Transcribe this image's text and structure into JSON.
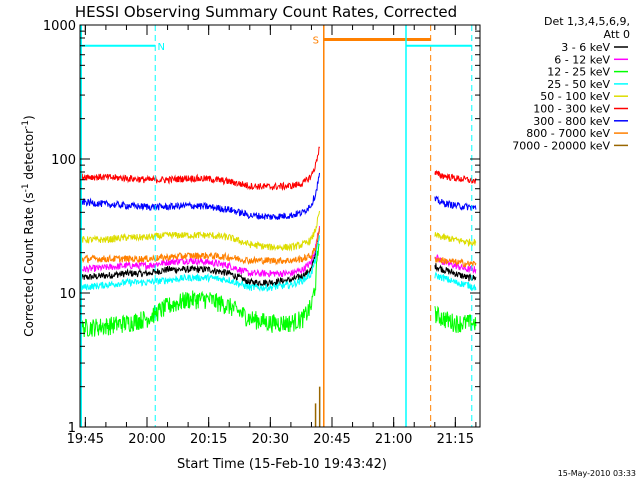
{
  "chart_data": {
    "type": "line",
    "title": "HESSI Observing Summary Count Rates, Corrected",
    "xlabel": "Start Time (15-Feb-10 19:43:42)",
    "ylabel": "Corrected Count Rate (s^-1 detector^-1)",
    "ylabel_parts": {
      "main": "Corrected Count Rate (s",
      "sup1": "-1",
      "mid": " detector",
      "sup2": "-1",
      "end": ")"
    },
    "yscale": "log",
    "ylim": [
      1,
      1000
    ],
    "xlim": [
      "19:43:42",
      "21:21:00"
    ],
    "x_ticks": [
      "19:45",
      "20:00",
      "20:15",
      "20:30",
      "20:45",
      "21:00",
      "21:15"
    ],
    "y_ticks": [
      "1",
      "10",
      "100",
      "1000"
    ],
    "legend_header": [
      "Det 1,3,4,5,6,9,",
      "Att 0"
    ],
    "legend_placement": "right",
    "footer": "15-May-2010 03:33",
    "data_gaps": [
      [
        "20:45:00",
        "21:10:00"
      ]
    ],
    "series": [
      {
        "name": "3 - 6 keV",
        "color": "#000000",
        "x": [
          "19:44",
          "19:50",
          "19:55",
          "20:00",
          "20:05",
          "20:10",
          "20:15",
          "20:20",
          "20:25",
          "20:30",
          "20:35",
          "20:38",
          "20:40",
          "20:41",
          "20:42",
          "21:10",
          "21:12",
          "21:15",
          "21:18",
          "21:20"
        ],
        "values": [
          13,
          13.5,
          14,
          14,
          15,
          15,
          15,
          14,
          12,
          12,
          12.5,
          13.5,
          15,
          20,
          30,
          16,
          15,
          14,
          13,
          13
        ]
      },
      {
        "name": "6 - 12 keV",
        "color": "#ff00ff",
        "x": [
          "19:44",
          "19:50",
          "19:55",
          "20:00",
          "20:05",
          "20:10",
          "20:15",
          "20:20",
          "20:25",
          "20:30",
          "20:35",
          "20:38",
          "20:40",
          "20:41",
          "20:42",
          "21:10",
          "21:12",
          "21:15",
          "21:18",
          "21:20"
        ],
        "values": [
          15,
          15.5,
          16,
          16,
          17,
          17.5,
          17,
          16,
          14,
          14,
          14,
          15,
          17,
          22,
          32,
          19,
          17,
          16,
          15,
          15
        ]
      },
      {
        "name": "12 - 25 keV",
        "color": "#00ff00",
        "x": [
          "19:44",
          "19:50",
          "19:55",
          "20:00",
          "20:05",
          "20:10",
          "20:15",
          "20:20",
          "20:25",
          "20:30",
          "20:35",
          "20:38",
          "20:40",
          "20:41",
          "20:42",
          "21:10",
          "21:12",
          "21:15",
          "21:18",
          "21:20"
        ],
        "values": [
          5.5,
          5.7,
          6,
          6.5,
          8,
          9,
          9,
          8,
          6.5,
          6,
          6,
          6.5,
          8,
          12,
          28,
          7,
          6.5,
          6,
          6,
          6
        ]
      },
      {
        "name": "25 - 50 keV",
        "color": "#00ffff",
        "x": [
          "19:44",
          "19:50",
          "19:55",
          "20:00",
          "20:05",
          "20:10",
          "20:15",
          "20:20",
          "20:25",
          "20:30",
          "20:35",
          "20:38",
          "20:40",
          "20:41",
          "20:42",
          "21:10",
          "21:12",
          "21:15",
          "21:18",
          "21:20"
        ],
        "values": [
          11,
          11.5,
          12,
          12,
          12.5,
          13,
          13,
          12.5,
          11,
          11,
          11.5,
          12.5,
          14,
          18,
          27,
          13.5,
          13,
          12,
          11.5,
          11
        ]
      },
      {
        "name": "50 - 100 keV",
        "color": "#dddd00",
        "x": [
          "19:44",
          "19:50",
          "19:55",
          "20:00",
          "20:05",
          "20:10",
          "20:15",
          "20:20",
          "20:25",
          "20:30",
          "20:35",
          "20:38",
          "20:40",
          "20:41",
          "20:42",
          "21:10",
          "21:12",
          "21:15",
          "21:18",
          "21:20"
        ],
        "values": [
          25,
          25,
          26,
          26,
          27,
          27,
          27,
          26,
          23,
          22,
          22,
          23,
          25,
          30,
          40,
          27,
          26,
          25,
          24,
          24
        ]
      },
      {
        "name": "100 - 300 keV",
        "color": "#ff0000",
        "x": [
          "19:44",
          "19:50",
          "19:55",
          "20:00",
          "20:05",
          "20:10",
          "20:15",
          "20:20",
          "20:25",
          "20:30",
          "20:35",
          "20:38",
          "20:40",
          "20:41",
          "20:42",
          "21:10",
          "21:12",
          "21:15",
          "21:18",
          "21:20"
        ],
        "values": [
          74,
          73,
          72,
          70,
          70,
          72,
          71,
          68,
          63,
          62,
          63,
          66,
          75,
          90,
          125,
          78,
          75,
          72,
          70,
          68
        ]
      },
      {
        "name": "300 - 800 keV",
        "color": "#0000ff",
        "x": [
          "19:44",
          "19:50",
          "19:55",
          "20:00",
          "20:05",
          "20:10",
          "20:15",
          "20:20",
          "20:25",
          "20:30",
          "20:35",
          "20:38",
          "20:40",
          "20:41",
          "20:42",
          "21:10",
          "21:12",
          "21:15",
          "21:18",
          "21:20"
        ],
        "values": [
          48,
          46,
          45,
          44,
          44,
          45,
          44,
          42,
          38,
          37,
          38,
          40,
          46,
          55,
          78,
          50,
          47,
          45,
          44,
          43
        ]
      },
      {
        "name": "800 - 7000 keV",
        "color": "#ff8000",
        "x": [
          "19:44",
          "19:50",
          "19:55",
          "20:00",
          "20:05",
          "20:10",
          "20:15",
          "20:20",
          "20:25",
          "20:30",
          "20:35",
          "20:38",
          "20:40",
          "20:41",
          "20:42",
          "21:10",
          "21:12",
          "21:15",
          "21:18",
          "21:20"
        ],
        "values": [
          18,
          18,
          18,
          18,
          18.5,
          19,
          19,
          18.5,
          17.5,
          17.5,
          17.5,
          18,
          19,
          22,
          30,
          18,
          17.5,
          17,
          16.5,
          16.5
        ]
      },
      {
        "name": "7000 - 20000 keV",
        "color": "#996600",
        "x": [
          "20:41",
          "20:42"
        ],
        "values": [
          1.5,
          2
        ]
      }
    ],
    "annotations": [
      {
        "label": "N",
        "color": "#00ffff",
        "type": "night",
        "start": "19:44",
        "end": "20:02",
        "line_level": 700
      },
      {
        "label": "S",
        "color": "#ff8000",
        "type": "saa",
        "start": "20:43",
        "end": "21:09",
        "line_level": 780
      },
      {
        "label": "",
        "color": "#00ffff",
        "type": "night",
        "start": "21:03",
        "end": "21:19",
        "line_level": 700
      }
    ]
  }
}
